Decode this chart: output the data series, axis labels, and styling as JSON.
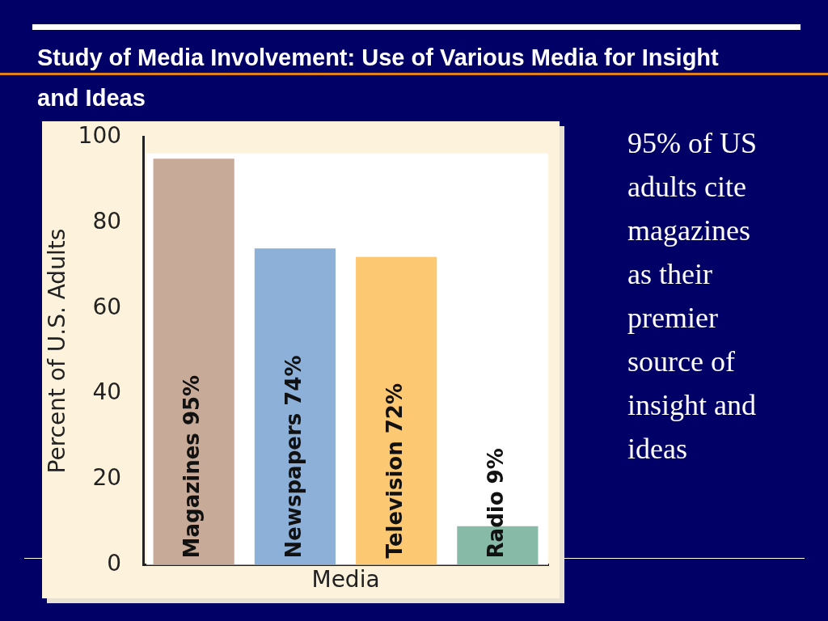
{
  "chart_data": {
    "type": "bar",
    "title": "Study of Media Involvement: Use of Various Media for Insight and Ideas",
    "xlabel": "Media",
    "ylabel": "Percent of U.S. Adults",
    "categories": [
      "Magazines 95%",
      "Newspapers 74%",
      "Television 72%",
      "Radio 9%"
    ],
    "values": [
      95,
      74,
      72,
      9
    ],
    "colors": [
      "#c8aa98",
      "#8cb0d8",
      "#fcc872",
      "#88baa8"
    ],
    "ylim": [
      0,
      100
    ],
    "yticks": [
      0,
      20,
      40,
      60,
      80,
      100
    ],
    "grid": false,
    "legend": false,
    "tick_labels": "y",
    "annotations": [
      "95% of US adults cite magazines as their premier source of insight and ideas"
    ]
  }
}
